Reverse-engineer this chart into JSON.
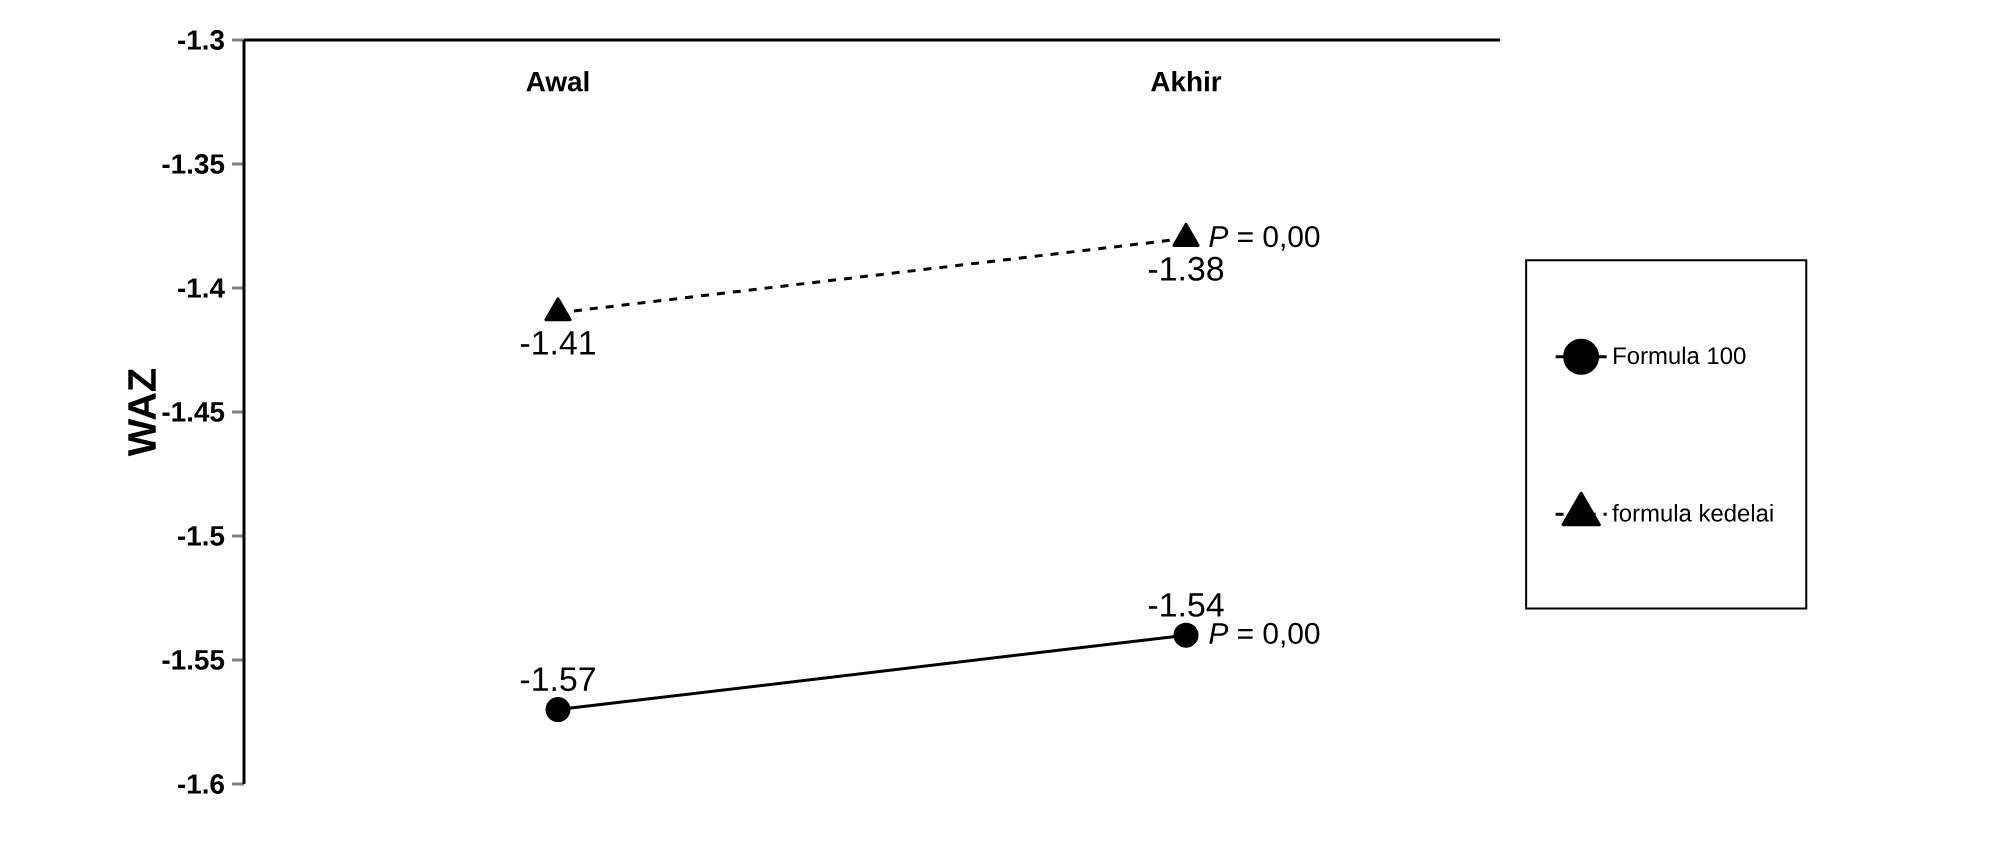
{
  "chart_data": {
    "type": "line",
    "ylabel": "WAZ",
    "categories": [
      "Awal",
      "Akhir"
    ],
    "series": [
      {
        "name": "Formula 100",
        "color": "#000000",
        "values": [
          -1.57,
          -1.54
        ],
        "marker": "circle",
        "line_style": "solid"
      },
      {
        "name": "formula kedelai",
        "color": "#000000",
        "values": [
          -1.41,
          -1.38
        ],
        "marker": "triangle",
        "line_style": "dashed"
      }
    ],
    "ylim": [
      -1.6,
      -1.3
    ],
    "yticks": [
      -1.6,
      -1.55,
      -1.5,
      -1.45,
      -1.4,
      -1.35,
      -1.3
    ],
    "data_labels": true,
    "legend": "right",
    "grid": false,
    "annotations": [
      {
        "text": "*P* = 0,00",
        "x": "Akhir",
        "y": -1.38
      },
      {
        "text": "*P* = 0,00",
        "x": "Akhir",
        "y": -1.54
      }
    ]
  }
}
